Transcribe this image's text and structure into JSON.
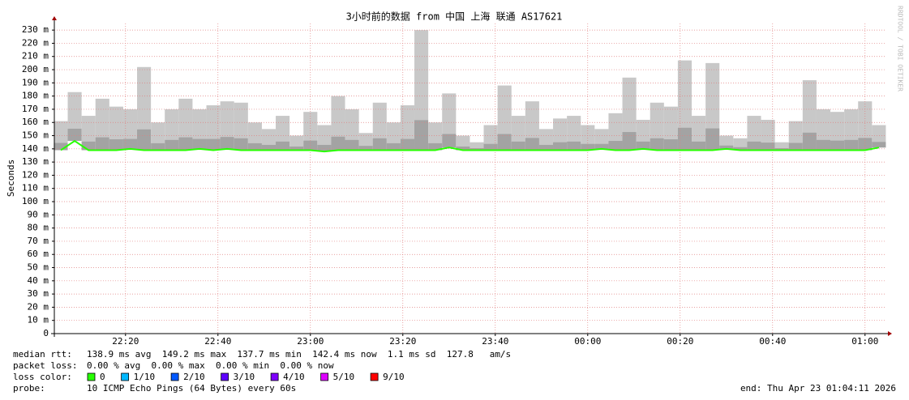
{
  "chart_data": {
    "type": "smokeping",
    "title": "3小时前的数据 from 中国 上海 联通 AS17621",
    "y_label": "Seconds",
    "side_label": "RRDTOOL / TOBI OETIKER",
    "grid": true,
    "median_color": "#26ff00",
    "smoke_color": "#c8c8c8",
    "xlim": [
      1324.6,
      1504.6
    ],
    "xticks": [
      {
        "value": 1340,
        "label": "22:20"
      },
      {
        "value": 1360,
        "label": "22:40"
      },
      {
        "value": 1380,
        "label": "23:00"
      },
      {
        "value": 1400,
        "label": "23:20"
      },
      {
        "value": 1420,
        "label": "23:40"
      },
      {
        "value": 1440,
        "label": "00:00"
      },
      {
        "value": 1460,
        "label": "00:20"
      },
      {
        "value": 1480,
        "label": "00:40"
      },
      {
        "value": 1500,
        "label": "01:00"
      }
    ],
    "ylim": [
      0,
      235
    ],
    "yticks": [
      0,
      {
        "value": 10,
        "label": "10 m"
      },
      {
        "value": 20,
        "label": "20 m"
      },
      {
        "value": 30,
        "label": "30 m"
      },
      {
        "value": 40,
        "label": "40 m"
      },
      {
        "value": 50,
        "label": "50 m"
      },
      {
        "value": 60,
        "label": "60 m"
      },
      {
        "value": 70,
        "label": "70 m"
      },
      {
        "value": 80,
        "label": "80 m"
      },
      {
        "value": 90,
        "label": "90 m"
      },
      {
        "value": 100,
        "label": "100 m"
      },
      {
        "value": 110,
        "label": "110 m"
      },
      {
        "value": 120,
        "label": "120 m"
      },
      {
        "value": 130,
        "label": "130 m"
      },
      {
        "value": 140,
        "label": "140 m"
      },
      {
        "value": 150,
        "label": "150 m"
      },
      {
        "value": 160,
        "label": "160 m"
      },
      {
        "value": 170,
        "label": "170 m"
      },
      {
        "value": 180,
        "label": "180 m"
      },
      {
        "value": 190,
        "label": "190 m"
      },
      {
        "value": 200,
        "label": "200 m"
      },
      {
        "value": 210,
        "label": "210 m"
      },
      {
        "value": 220,
        "label": "220 m"
      },
      {
        "value": 230,
        "label": "230 m"
      }
    ],
    "x": [
      1326,
      1329,
      1332,
      1335,
      1338,
      1341,
      1344,
      1347,
      1350,
      1353,
      1356,
      1359,
      1362,
      1365,
      1368,
      1371,
      1374,
      1377,
      1380,
      1383,
      1386,
      1389,
      1392,
      1395,
      1398,
      1401,
      1404,
      1407,
      1410,
      1413,
      1416,
      1419,
      1422,
      1425,
      1428,
      1431,
      1434,
      1437,
      1440,
      1443,
      1446,
      1449,
      1452,
      1455,
      1458,
      1461,
      1464,
      1467,
      1470,
      1473,
      1476,
      1479,
      1482,
      1485,
      1488,
      1491,
      1494,
      1497,
      1500,
      1503
    ],
    "median": [
      139,
      146,
      139,
      139,
      139,
      140,
      139,
      139,
      139,
      139,
      140,
      139,
      140,
      139,
      139,
      139,
      139,
      139,
      139,
      138,
      139,
      139,
      139,
      139,
      139,
      139,
      139,
      139,
      141,
      139,
      139,
      139,
      139,
      139,
      139,
      139,
      139,
      139,
      139,
      140,
      139,
      139,
      140,
      139,
      139,
      139,
      139,
      139,
      140,
      139,
      139,
      139,
      139,
      139,
      139,
      139,
      139,
      139,
      139,
      141
    ],
    "smoke_max": [
      161,
      183,
      165,
      178,
      172,
      170,
      202,
      160,
      170,
      178,
      170,
      173,
      176,
      175,
      160,
      155,
      165,
      150,
      168,
      158,
      180,
      170,
      152,
      175,
      160,
      173,
      230,
      160,
      182,
      150,
      145,
      158,
      188,
      165,
      176,
      155,
      163,
      165,
      158,
      155,
      167,
      194,
      162,
      175,
      172,
      207,
      165,
      205,
      150,
      148,
      165,
      162,
      145,
      161,
      192,
      170,
      168,
      170,
      176,
      158
    ],
    "stats": [
      {
        "label": "median rtt:",
        "text": "138.9 ms avg  149.2 ms max  137.7 ms min  142.4 ms now  1.1 ms sd  127.8   am/s"
      },
      {
        "label": "packet loss:",
        "text": "0.00 % avg  0.00 % max  0.00 % min  0.00 % now"
      }
    ],
    "loss_color_label": "loss color:",
    "loss_colors": [
      {
        "label": "0",
        "color": "#26ff00"
      },
      {
        "label": "1/10",
        "color": "#00b8ff"
      },
      {
        "label": "2/10",
        "color": "#0059ff"
      },
      {
        "label": "3/10",
        "color": "#5e00ff"
      },
      {
        "label": "4/10",
        "color": "#7e00ff"
      },
      {
        "label": "5/10",
        "color": "#dd00ff"
      },
      {
        "label": "9/10",
        "color": "#ff0000"
      }
    ],
    "probe_label": "probe:",
    "probe": "10 ICMP Echo Pings (64 Bytes) every 60s",
    "end": "end: Thu Apr 23 01:04:11 2026"
  }
}
